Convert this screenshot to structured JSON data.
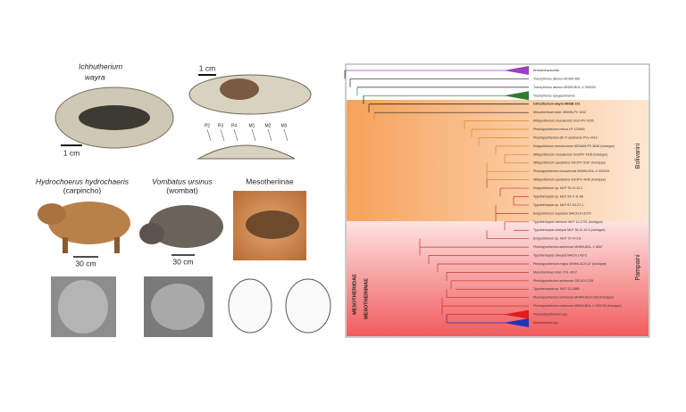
{
  "figure": {
    "left": {
      "fossil_name": "Ichhutherium",
      "fossil_name_2": "wayra",
      "scale_skull": "1 cm",
      "scale_jaw": "1 cm",
      "teeth": [
        "P2",
        "P3",
        "P4",
        "M1",
        "M2",
        "M3"
      ],
      "species": [
        {
          "name": "Hydrochoerus hydrochaeris",
          "common": "(carpincho)"
        },
        {
          "name": "Vombatus ursinus",
          "common": "(wombat)"
        },
        {
          "name": "Mesotheriinae"
        }
      ],
      "scale_capybara": "30 cm",
      "scale_wombat": "30 cm"
    },
    "tree": {
      "family": "MESOTHERIIDAE",
      "subfamily": "MESOTHERIINAE",
      "clades": [
        {
          "name": "Bolivarini",
          "color": "#e8892e"
        },
        {
          "name": "Pampaini",
          "color": "#e0453a"
        }
      ],
      "taxa": [
        {
          "label": "Archaeohyracidae",
          "color": "#9b3fc6",
          "collapsed": true
        },
        {
          "label": "Trachytherus alloxus MOSM 380",
          "color": "#222"
        },
        {
          "label": "Trachytherus alloxus MNHN-BOL-V 000320",
          "color": "#222"
        },
        {
          "label": "Trachytherus spegazzinianus",
          "color": "#2e7d32",
          "collapsed": true
        },
        {
          "label": "Ichhutherium wayra MHSB 101",
          "color": "#111",
          "bold": true
        },
        {
          "label": "Mesotheriinae indet. MNHN-PV 1102",
          "color": "#222"
        },
        {
          "label": "Altitypotherium chucalensis SGO-PV 4105",
          "color": "#d98a2b"
        },
        {
          "label": "Plesiotypotherium minus LP 123963",
          "color": "#d98a2b"
        },
        {
          "label": "Plesiotypotherium aff. P. achirense PVL 4419",
          "color": "#d98a2b"
        },
        {
          "label": "Eutypotherium mendocense MCNAM-PV 3846 (holotype)",
          "color": "#d98a2b"
        },
        {
          "label": "Altitypotherium chucalensis SGOPV 4106 (holotype)",
          "color": "#d98a2b"
        },
        {
          "label": "Altitypotherium paucidens SGOPV 5167 (holotype)",
          "color": "#d98a2b"
        },
        {
          "label": "Plesiotypotherium chucalensis MNHN-BOL-V 003249",
          "color": "#d98a2b"
        },
        {
          "label": "Altitypotherium paucidens SGOPV 4036 (holotype)",
          "color": "#d98a2b"
        },
        {
          "label": "Eutypotherium sp. MLP 76-VI-12-1",
          "color": "#c0392b"
        },
        {
          "label": "Typotheriopsis sp. MLP 29-X-11-66",
          "color": "#c0392b"
        },
        {
          "label": "Typotheriopsis sp. MLP 87-XII-27-1",
          "color": "#c0392b"
        },
        {
          "label": "Eutypotherium superans MACN-A 11079",
          "color": "#c0392b"
        },
        {
          "label": "Typotheriopsis internum MLP 12-1731 (holotype)",
          "color": "#c0392b"
        },
        {
          "label": "Typotheriopsis silveyrai MLP 36-XI-10-5 (holotype)",
          "color": "#c0392b"
        },
        {
          "label": "Eutypotherium sp. MLP 72-VI-3-8",
          "color": "#c0392b"
        },
        {
          "label": "Plesiotypotherium achirense MNHN-BOL-V 6657",
          "color": "#c0392b"
        },
        {
          "label": "Typotheriopsis silveyrai MACN 14373",
          "color": "#c0392b"
        },
        {
          "label": "Plesiotypotherium majus MNHN-ACH-37 (holotype)",
          "color": "#c0392b"
        },
        {
          "label": "Mesotheriinae indet. PVL 4017",
          "color": "#c0392b"
        },
        {
          "label": "Plesiotypotherium achirense GB-ACH 228",
          "color": "#c0392b"
        },
        {
          "label": "Typotheriopsis sp. MLP 12-1886",
          "color": "#c0392b"
        },
        {
          "label": "Plesiotypotherium achirense MNHN-ACH-228 (holotype)",
          "color": "#c0392b"
        },
        {
          "label": "Plesiotypotherium casirense MNHN-BOL-V 003745 (holotype)",
          "color": "#c0392b"
        },
        {
          "label": "Pseudotypotherium spp.",
          "color": "#e01b1b",
          "collapsed": true
        },
        {
          "label": "Mesotherium spp.",
          "color": "#2233bb",
          "collapsed": true
        }
      ]
    }
  }
}
